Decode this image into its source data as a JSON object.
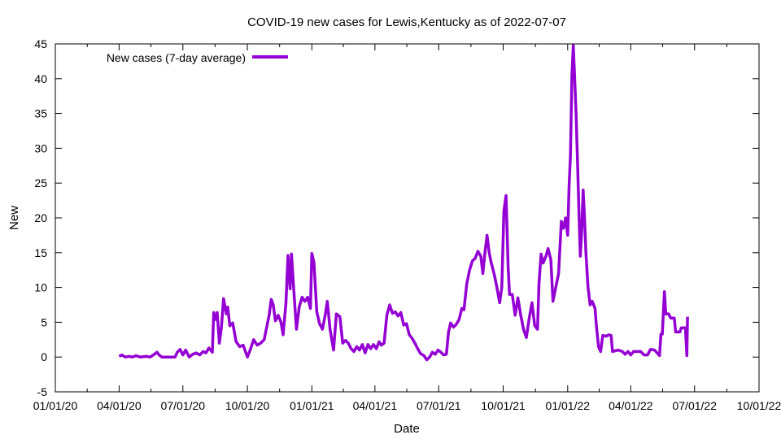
{
  "chart_data": {
    "type": "line",
    "title": "COVID-19 new cases for Lewis,Kentucky as of 2022-07-07",
    "xlabel": "Date",
    "ylabel": "New",
    "xlim": [
      "2020-01-01",
      "2022-10-01"
    ],
    "ylim": [
      -5,
      45
    ],
    "x_ticks": [
      "01/01/20",
      "04/01/20",
      "07/01/20",
      "10/01/20",
      "01/01/21",
      "04/01/21",
      "07/01/21",
      "10/01/21",
      "01/01/22",
      "04/01/22",
      "07/01/22",
      "10/01/22"
    ],
    "x_tick_dates": [
      "2020-01-01",
      "2020-04-01",
      "2020-07-01",
      "2020-10-01",
      "2021-01-01",
      "2021-04-01",
      "2021-07-01",
      "2021-10-01",
      "2022-01-01",
      "2022-04-01",
      "2022-07-01",
      "2022-10-01"
    ],
    "y_ticks": [
      -5,
      0,
      5,
      10,
      15,
      20,
      25,
      30,
      35,
      40,
      45
    ],
    "grid": false,
    "legend_position": "top-left",
    "series": [
      {
        "name": "New cases (7-day average)",
        "color": "#9400d3",
        "points": [
          [
            "2020-04-01",
            0.1
          ],
          [
            "2020-04-05",
            0.3
          ],
          [
            "2020-04-10",
            0.0
          ],
          [
            "2020-04-15",
            0.1
          ],
          [
            "2020-04-20",
            0.0
          ],
          [
            "2020-04-25",
            0.2
          ],
          [
            "2020-05-01",
            0.0
          ],
          [
            "2020-05-10",
            0.1
          ],
          [
            "2020-05-15",
            0.0
          ],
          [
            "2020-05-20",
            0.3
          ],
          [
            "2020-05-25",
            0.7
          ],
          [
            "2020-05-28",
            0.3
          ],
          [
            "2020-06-01",
            0.0
          ],
          [
            "2020-06-10",
            0.0
          ],
          [
            "2020-06-20",
            0.0
          ],
          [
            "2020-06-23",
            0.7
          ],
          [
            "2020-06-27",
            1.1
          ],
          [
            "2020-07-01",
            0.3
          ],
          [
            "2020-07-05",
            1.0
          ],
          [
            "2020-07-10",
            0.0
          ],
          [
            "2020-07-15",
            0.4
          ],
          [
            "2020-07-20",
            0.6
          ],
          [
            "2020-07-25",
            0.3
          ],
          [
            "2020-07-30",
            0.8
          ],
          [
            "2020-08-03",
            0.6
          ],
          [
            "2020-08-07",
            1.3
          ],
          [
            "2020-08-12",
            0.7
          ],
          [
            "2020-08-14",
            6.4
          ],
          [
            "2020-08-17",
            5.4
          ],
          [
            "2020-08-19",
            6.4
          ],
          [
            "2020-08-22",
            2.0
          ],
          [
            "2020-08-25",
            4.3
          ],
          [
            "2020-08-28",
            8.4
          ],
          [
            "2020-09-01",
            6.2
          ],
          [
            "2020-09-03",
            7.2
          ],
          [
            "2020-09-06",
            4.5
          ],
          [
            "2020-09-10",
            4.9
          ],
          [
            "2020-09-15",
            2.2
          ],
          [
            "2020-09-20",
            1.5
          ],
          [
            "2020-09-25",
            1.7
          ],
          [
            "2020-10-01",
            0.0
          ],
          [
            "2020-10-05",
            1.0
          ],
          [
            "2020-10-10",
            2.5
          ],
          [
            "2020-10-15",
            1.7
          ],
          [
            "2020-10-20",
            2.0
          ],
          [
            "2020-10-25",
            2.5
          ],
          [
            "2020-11-01",
            6.0
          ],
          [
            "2020-11-04",
            8.3
          ],
          [
            "2020-11-07",
            7.5
          ],
          [
            "2020-11-10",
            5.2
          ],
          [
            "2020-11-14",
            6.0
          ],
          [
            "2020-11-18",
            5.0
          ],
          [
            "2020-11-21",
            3.2
          ],
          [
            "2020-11-25",
            7.8
          ],
          [
            "2020-11-28",
            14.6
          ],
          [
            "2020-12-01",
            9.8
          ],
          [
            "2020-12-03",
            14.8
          ],
          [
            "2020-12-06",
            10.0
          ],
          [
            "2020-12-10",
            4.0
          ],
          [
            "2020-12-14",
            7.2
          ],
          [
            "2020-12-18",
            8.6
          ],
          [
            "2020-12-22",
            8.0
          ],
          [
            "2020-12-26",
            8.6
          ],
          [
            "2020-12-30",
            7.0
          ],
          [
            "2021-01-01",
            14.9
          ],
          [
            "2021-01-04",
            13.6
          ],
          [
            "2021-01-08",
            6.5
          ],
          [
            "2021-01-12",
            4.8
          ],
          [
            "2021-01-16",
            4.0
          ],
          [
            "2021-01-20",
            6.0
          ],
          [
            "2021-01-23",
            8.0
          ],
          [
            "2021-01-27",
            4.0
          ],
          [
            "2021-02-01",
            1.0
          ],
          [
            "2021-02-05",
            6.2
          ],
          [
            "2021-02-10",
            5.8
          ],
          [
            "2021-02-14",
            2.0
          ],
          [
            "2021-02-18",
            2.4
          ],
          [
            "2021-02-22",
            2.0
          ],
          [
            "2021-02-26",
            1.2
          ],
          [
            "2021-03-02",
            0.8
          ],
          [
            "2021-03-06",
            1.5
          ],
          [
            "2021-03-10",
            1.0
          ],
          [
            "2021-03-14",
            1.8
          ],
          [
            "2021-03-18",
            0.6
          ],
          [
            "2021-03-22",
            1.8
          ],
          [
            "2021-03-26",
            1.2
          ],
          [
            "2021-03-30",
            1.8
          ],
          [
            "2021-04-03",
            1.2
          ],
          [
            "2021-04-07",
            2.2
          ],
          [
            "2021-04-10",
            1.7
          ],
          [
            "2021-04-14",
            2.0
          ],
          [
            "2021-04-18",
            6.0
          ],
          [
            "2021-04-22",
            7.5
          ],
          [
            "2021-04-26",
            6.3
          ],
          [
            "2021-04-30",
            6.5
          ],
          [
            "2021-05-04",
            5.9
          ],
          [
            "2021-05-08",
            6.4
          ],
          [
            "2021-05-12",
            4.6
          ],
          [
            "2021-05-16",
            4.8
          ],
          [
            "2021-05-20",
            3.2
          ],
          [
            "2021-05-24",
            2.7
          ],
          [
            "2021-05-28",
            2.0
          ],
          [
            "2021-06-01",
            1.2
          ],
          [
            "2021-06-05",
            0.5
          ],
          [
            "2021-06-10",
            0.2
          ],
          [
            "2021-06-14",
            -0.4
          ],
          [
            "2021-06-18",
            0.0
          ],
          [
            "2021-06-22",
            0.7
          ],
          [
            "2021-06-26",
            0.4
          ],
          [
            "2021-06-30",
            1.0
          ],
          [
            "2021-07-04",
            0.7
          ],
          [
            "2021-07-08",
            0.3
          ],
          [
            "2021-07-12",
            0.4
          ],
          [
            "2021-07-15",
            3.6
          ],
          [
            "2021-07-18",
            4.9
          ],
          [
            "2021-07-22",
            4.3
          ],
          [
            "2021-07-26",
            4.7
          ],
          [
            "2021-07-30",
            5.4
          ],
          [
            "2021-08-03",
            7.0
          ],
          [
            "2021-08-06",
            6.8
          ],
          [
            "2021-08-10",
            10.5
          ],
          [
            "2021-08-14",
            12.5
          ],
          [
            "2021-08-18",
            13.8
          ],
          [
            "2021-08-22",
            14.2
          ],
          [
            "2021-08-26",
            15.2
          ],
          [
            "2021-08-30",
            14.5
          ],
          [
            "2021-09-02",
            12.0
          ],
          [
            "2021-09-05",
            15.0
          ],
          [
            "2021-09-08",
            17.5
          ],
          [
            "2021-09-11",
            15.0
          ],
          [
            "2021-09-14",
            13.5
          ],
          [
            "2021-09-18",
            12.0
          ],
          [
            "2021-09-22",
            10.0
          ],
          [
            "2021-09-26",
            7.8
          ],
          [
            "2021-09-29",
            10.0
          ],
          [
            "2021-10-02",
            21.0
          ],
          [
            "2021-10-05",
            23.2
          ],
          [
            "2021-10-08",
            13.0
          ],
          [
            "2021-10-10",
            9.0
          ],
          [
            "2021-10-14",
            9.0
          ],
          [
            "2021-10-18",
            6.0
          ],
          [
            "2021-10-22",
            8.5
          ],
          [
            "2021-10-26",
            6.0
          ],
          [
            "2021-10-30",
            4.0
          ],
          [
            "2021-11-03",
            2.8
          ],
          [
            "2021-11-07",
            5.5
          ],
          [
            "2021-11-11",
            7.8
          ],
          [
            "2021-11-15",
            4.5
          ],
          [
            "2021-11-19",
            4.0
          ],
          [
            "2021-11-21",
            10.5
          ],
          [
            "2021-11-24",
            14.8
          ],
          [
            "2021-11-27",
            13.5
          ],
          [
            "2021-12-01",
            14.5
          ],
          [
            "2021-12-04",
            15.6
          ],
          [
            "2021-12-08",
            14.0
          ],
          [
            "2021-12-11",
            8.0
          ],
          [
            "2021-12-15",
            10.0
          ],
          [
            "2021-12-19",
            12.0
          ],
          [
            "2021-12-23",
            19.5
          ],
          [
            "2021-12-26",
            18.5
          ],
          [
            "2021-12-29",
            20.0
          ],
          [
            "2022-01-01",
            17.5
          ],
          [
            "2022-01-03",
            24.5
          ],
          [
            "2022-01-05",
            29.0
          ],
          [
            "2022-01-07",
            40.5
          ],
          [
            "2022-01-09",
            44.8
          ],
          [
            "2022-01-11",
            40.0
          ],
          [
            "2022-01-13",
            35.0
          ],
          [
            "2022-01-15",
            28.0
          ],
          [
            "2022-01-17",
            21.0
          ],
          [
            "2022-01-19",
            14.5
          ],
          [
            "2022-01-21",
            18.0
          ],
          [
            "2022-01-23",
            24.0
          ],
          [
            "2022-01-25",
            20.0
          ],
          [
            "2022-01-27",
            15.0
          ],
          [
            "2022-01-30",
            10.0
          ],
          [
            "2022-02-02",
            7.5
          ],
          [
            "2022-02-05",
            8.0
          ],
          [
            "2022-02-09",
            7.0
          ],
          [
            "2022-02-11",
            4.5
          ],
          [
            "2022-02-14",
            1.5
          ],
          [
            "2022-02-17",
            0.8
          ],
          [
            "2022-02-20",
            3.1
          ],
          [
            "2022-02-25",
            3.0
          ],
          [
            "2022-03-01",
            3.2
          ],
          [
            "2022-03-04",
            3.1
          ],
          [
            "2022-03-06",
            0.8
          ],
          [
            "2022-03-14",
            1.0
          ],
          [
            "2022-03-20",
            0.8
          ],
          [
            "2022-03-24",
            0.4
          ],
          [
            "2022-03-28",
            0.8
          ],
          [
            "2022-04-01",
            0.3
          ],
          [
            "2022-04-05",
            0.8
          ],
          [
            "2022-04-10",
            0.8
          ],
          [
            "2022-04-15",
            0.8
          ],
          [
            "2022-04-20",
            0.3
          ],
          [
            "2022-04-25",
            0.3
          ],
          [
            "2022-04-29",
            1.1
          ],
          [
            "2022-05-05",
            1.0
          ],
          [
            "2022-05-12",
            0.2
          ],
          [
            "2022-05-14",
            3.3
          ],
          [
            "2022-05-16",
            3.3
          ],
          [
            "2022-05-19",
            9.4
          ],
          [
            "2022-05-21",
            6.2
          ],
          [
            "2022-05-25",
            6.2
          ],
          [
            "2022-05-28",
            5.6
          ],
          [
            "2022-06-02",
            5.6
          ],
          [
            "2022-06-04",
            3.6
          ],
          [
            "2022-06-10",
            3.6
          ],
          [
            "2022-06-12",
            4.2
          ],
          [
            "2022-06-18",
            4.2
          ],
          [
            "2022-06-20",
            0.2
          ],
          [
            "2022-06-21",
            5.8
          ]
        ]
      }
    ]
  }
}
